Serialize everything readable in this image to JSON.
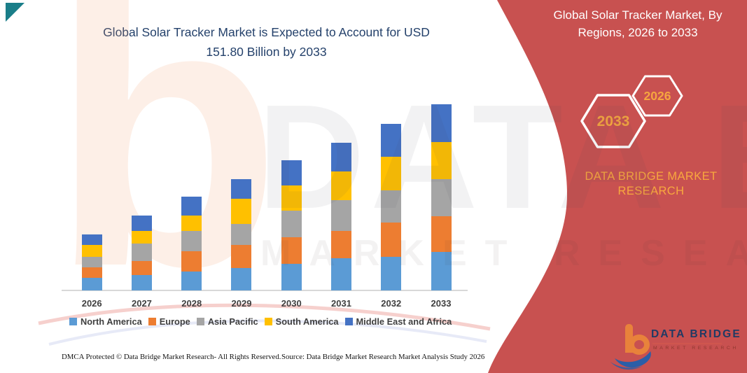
{
  "header": {
    "chart_title_lines": [
      "Global Solar Tracker Market is Expected to Account for USD",
      "151.80 Billion by 2033"
    ]
  },
  "side_panel": {
    "title_lines": [
      "Global Solar Tracker Market, By",
      "Regions, 2026 to 2033"
    ],
    "hexagon_end_year": "2033",
    "hexagon_start_year": "2026",
    "brand_caption": "DATA BRIDGE MARKET RESEARCH",
    "logo": {
      "name": "DATA BRIDGE",
      "tagline": "MARKET RESEARCH"
    }
  },
  "watermark": {
    "letter_b": "b",
    "big_text": "DATA BRIDGE",
    "sub_text": "MARKET RESEARCH"
  },
  "footer": {
    "dmca": "DMCA Protected © Data Bridge Market Research-  All Rights Reserved.",
    "source": "Source: Data Bridge Market Research  Market Analysis Study 2026"
  },
  "colors": {
    "panel_red": "#C85150",
    "title_navy": "#24416B",
    "accent_orange": "#F8A83E",
    "corner_teal": "#1A7E89",
    "axis_text": "#3F3F3F"
  },
  "chart_data": {
    "type": "bar",
    "stacked": true,
    "title": "Global Solar Tracker Market is Expected to Account for USD 151.80 Billion by 2033",
    "unit": "USD Billion",
    "legend_position": "bottom",
    "y_axis_visible": false,
    "grid": false,
    "categories": [
      "2026",
      "2027",
      "2028",
      "2029",
      "2030",
      "2031",
      "2032",
      "2033"
    ],
    "series": [
      {
        "name": "North America",
        "color": "#5B9BD5",
        "values": [
          10.3,
          12.4,
          15.2,
          18.4,
          21.9,
          26.1,
          27.6,
          31.4
        ]
      },
      {
        "name": "Europe",
        "color": "#ED7D31",
        "values": [
          8.6,
          11.4,
          16.6,
          18.7,
          21.3,
          22.4,
          27.6,
          28.9
        ]
      },
      {
        "name": "Asia Pacific",
        "color": "#A5A5A5",
        "values": [
          8.6,
          14.3,
          16.7,
          17.1,
          21.9,
          25.1,
          26.6,
          30.4
        ]
      },
      {
        "name": "South America",
        "color": "#FFC000",
        "values": [
          9.7,
          10.4,
          12.4,
          20.4,
          20.5,
          23.4,
          27.0,
          30.4
        ]
      },
      {
        "name": "Middle East and Africa",
        "color": "#4472C4",
        "values": [
          8.6,
          12.7,
          15.6,
          16.2,
          20.5,
          23.4,
          27.2,
          30.7
        ]
      }
    ],
    "totals": [
      45.8,
      61.2,
      76.5,
      90.8,
      106.1,
      120.4,
      136.0,
      151.8
    ]
  }
}
